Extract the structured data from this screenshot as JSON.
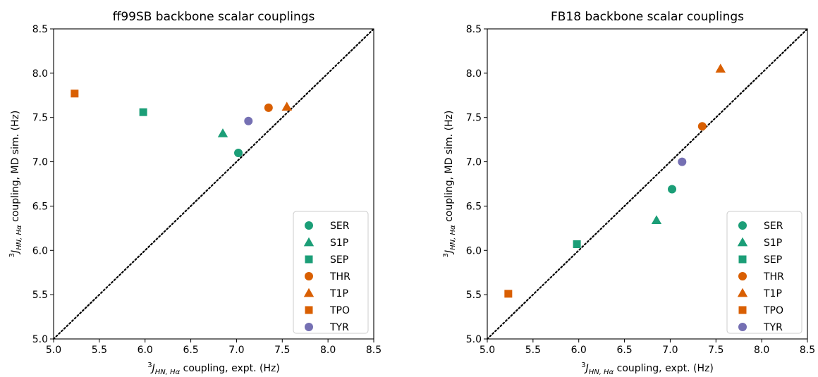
{
  "colors": {
    "SER": "#1b9e77",
    "S1P": "#1b9e77",
    "SEP": "#1b9e77",
    "THR": "#d95f02",
    "T1P": "#d95f02",
    "TPO": "#d95f02",
    "TYR": "#7570b3"
  },
  "markers": {
    "SER": "circle",
    "S1P": "triangle",
    "SEP": "square",
    "THR": "circle",
    "T1P": "triangle",
    "TPO": "square",
    "TYR": "circle"
  },
  "chart_data": [
    {
      "type": "scatter",
      "title": "ff99SB backbone scalar couplings",
      "xlabel": {
        "sup": "3",
        "main": "J",
        "sub": "HN, Hα",
        "rest": " coupling, expt. (Hz)"
      },
      "ylabel": {
        "sup": "3",
        "main": "J",
        "sub": "HN, Hα",
        "rest": " coupling, MD sim. (Hz)"
      },
      "xlim": [
        5.0,
        8.5
      ],
      "ylim": [
        5.0,
        8.5
      ],
      "xticks": [
        "5.0",
        "5.5",
        "6.0",
        "6.5",
        "7.0",
        "7.5",
        "8.0",
        "8.5"
      ],
      "yticks": [
        "5.0",
        "5.5",
        "6.0",
        "6.5",
        "7.0",
        "7.5",
        "8.0",
        "8.5"
      ],
      "diagonal": "y = x (dotted)",
      "legend_position": "lower-right",
      "grid": false,
      "series": [
        {
          "name": "SER",
          "x": 7.02,
          "y": 7.1
        },
        {
          "name": "S1P",
          "x": 6.85,
          "y": 7.32
        },
        {
          "name": "SEP",
          "x": 5.98,
          "y": 7.56
        },
        {
          "name": "THR",
          "x": 7.35,
          "y": 7.61
        },
        {
          "name": "T1P",
          "x": 7.55,
          "y": 7.62
        },
        {
          "name": "TPO",
          "x": 5.23,
          "y": 7.77
        },
        {
          "name": "TYR",
          "x": 7.13,
          "y": 7.46
        }
      ]
    },
    {
      "type": "scatter",
      "title": "FB18 backbone scalar couplings",
      "xlabel": {
        "sup": "3",
        "main": "J",
        "sub": "HN, Hα",
        "rest": " coupling, expt. (Hz)"
      },
      "ylabel": {
        "sup": "3",
        "main": "J",
        "sub": "HN, Hα",
        "rest": " coupling, MD sim. (Hz)"
      },
      "xlim": [
        5.0,
        8.5
      ],
      "ylim": [
        5.0,
        8.5
      ],
      "xticks": [
        "5.0",
        "5.5",
        "6.0",
        "6.5",
        "7.0",
        "7.5",
        "8.0",
        "8.5"
      ],
      "yticks": [
        "5.0",
        "5.5",
        "6.0",
        "6.5",
        "7.0",
        "7.5",
        "8.0",
        "8.5"
      ],
      "diagonal": "y = x (dotted)",
      "legend_position": "lower-right",
      "grid": false,
      "series": [
        {
          "name": "SER",
          "x": 7.02,
          "y": 6.69
        },
        {
          "name": "S1P",
          "x": 6.85,
          "y": 6.34
        },
        {
          "name": "SEP",
          "x": 5.98,
          "y": 6.07
        },
        {
          "name": "THR",
          "x": 7.35,
          "y": 7.4
        },
        {
          "name": "T1P",
          "x": 7.55,
          "y": 8.05
        },
        {
          "name": "TPO",
          "x": 5.23,
          "y": 5.51
        },
        {
          "name": "TYR",
          "x": 7.13,
          "y": 7.0
        }
      ]
    }
  ]
}
